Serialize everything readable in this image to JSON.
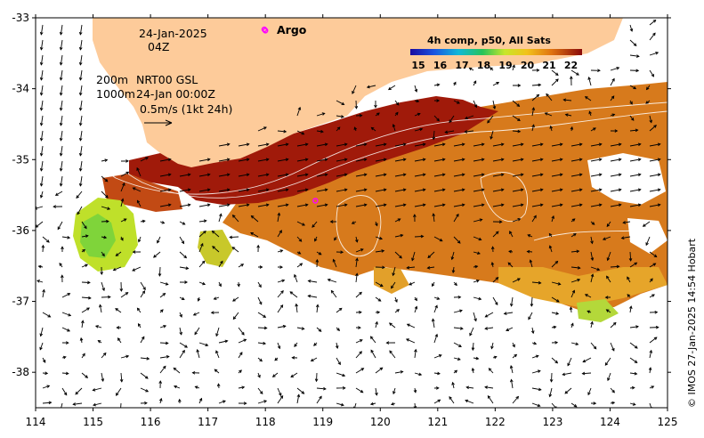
{
  "map": {
    "date_line": "24-Jan-2025",
    "time_line": "04Z",
    "depth_line_1": "200m",
    "depth_line_2": "1000m",
    "product_line_1": "NRT00 GSL",
    "product_line_2": "24-Jan 00:00Z",
    "scale_label": "0.5m/s (1kt 24h)",
    "argo_label": "Argo",
    "credit": "© IMOS 27-Jan-2025 14:54 Hobart",
    "legend": {
      "title": "4h comp, p50, All Sats",
      "ticks": [
        "15",
        "16",
        "17",
        "18",
        "19",
        "20",
        "21",
        "22"
      ]
    },
    "x_ticks": [
      "114",
      "115",
      "116",
      "117",
      "118",
      "119",
      "120",
      "121",
      "122",
      "123",
      "124",
      "125"
    ],
    "y_ticks": [
      "-33",
      "-34",
      "-35",
      "-36",
      "-37",
      "-38"
    ],
    "lon_range": [
      114,
      125
    ],
    "lat_range": [
      -38.5,
      -33
    ],
    "argo_floats": [
      {
        "lon": 118.0,
        "lat": -33.18
      },
      {
        "lon": 118.87,
        "lat": -35.58
      }
    ],
    "colors": {
      "land": "#fdcb9a",
      "argo": "#ff00ff",
      "sst_warm": "#a01a0a",
      "sst_mid": "#d77a1c"
    }
  }
}
